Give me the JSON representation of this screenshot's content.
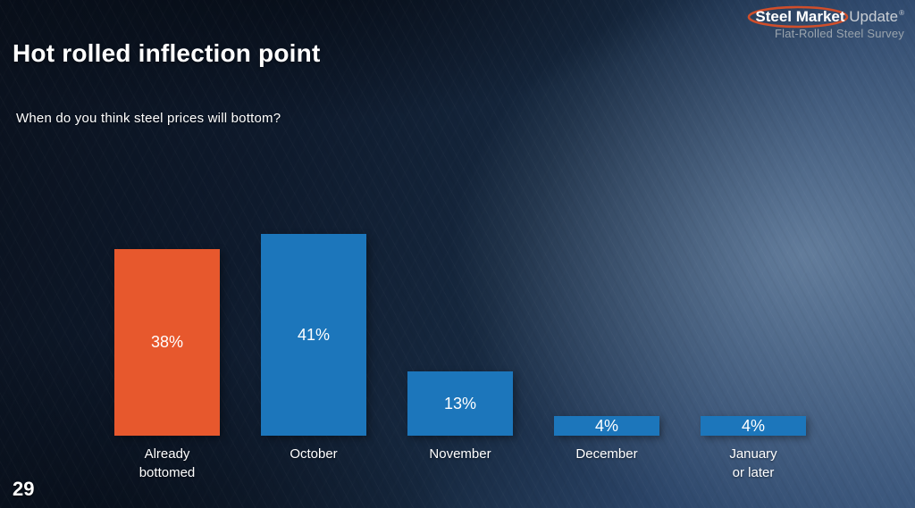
{
  "slide": {
    "title": "Hot rolled inflection point",
    "page_number": "29"
  },
  "logo": {
    "brand_bold": "Steel Market",
    "brand_light": " Update",
    "registered": "®",
    "subtitle": "Flat-Rolled Steel Survey",
    "swoosh_color": "#d94f28"
  },
  "chart_data": {
    "type": "bar",
    "title": "When do you think steel prices will bottom?",
    "categories": [
      "Already\nbottomed",
      "October",
      "November",
      "December",
      "January\nor later"
    ],
    "values": [
      38,
      41,
      13,
      4,
      4
    ],
    "value_labels": [
      "38%",
      "41%",
      "13%",
      "4%",
      "4%"
    ],
    "bar_colors": [
      "#E7582D",
      "#1C76BB",
      "#1C76BB",
      "#1C76BB",
      "#1C76BB"
    ],
    "xlabel": "",
    "ylabel": "",
    "ylim": [
      0,
      45
    ],
    "grid": false,
    "legend": false
  },
  "colors": {
    "accent_orange": "#E7582D",
    "accent_blue": "#1C76BB",
    "text": "#FFFFFF"
  }
}
